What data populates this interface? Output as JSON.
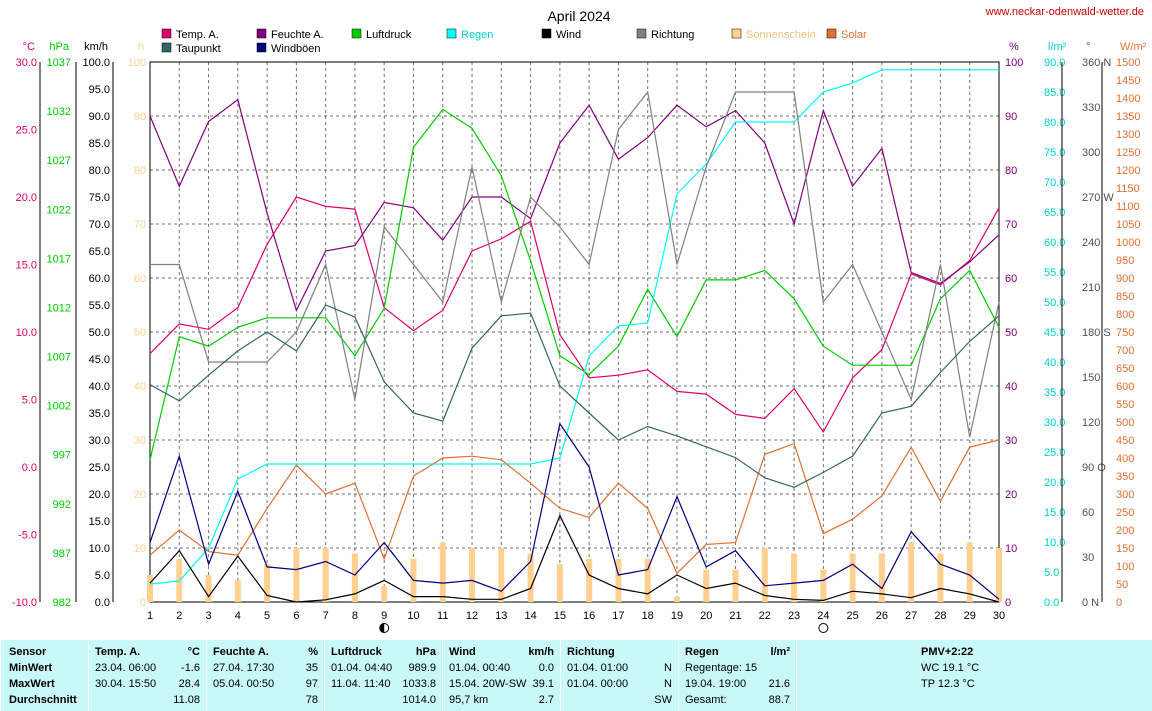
{
  "site_url": "www.neckar-odenwald-wetter.de",
  "chart_data": {
    "type": "line",
    "title": "April 2024",
    "x": [
      1,
      2,
      3,
      4,
      5,
      6,
      7,
      8,
      9,
      10,
      11,
      12,
      13,
      14,
      15,
      16,
      17,
      18,
      19,
      20,
      21,
      22,
      23,
      24,
      25,
      26,
      27,
      28,
      29,
      30
    ],
    "xlim": [
      1,
      30
    ],
    "grid": true,
    "axes": {
      "temp_c": {
        "label": "°C",
        "min": -10,
        "max": 30,
        "ticks": [
          "-10.0",
          "-5.0",
          "0.0",
          "5.0",
          "10.0",
          "15.0",
          "20.0",
          "25.0",
          "30.0"
        ]
      },
      "pressure": {
        "label": "hPa",
        "min": 982,
        "max": 1039,
        "ticks": [
          "982",
          "987",
          "992",
          "997",
          "1002",
          "1007",
          "1012",
          "1017",
          "1022",
          "1027",
          "1032",
          "1037"
        ]
      },
      "wind_kmh": {
        "label": "km/h",
        "min": 0,
        "max": 100,
        "ticks": [
          "0.0",
          "5.0",
          "10.0",
          "15.0",
          "20.0",
          "25.0",
          "30.0",
          "35.0",
          "40.0",
          "45.0",
          "50.0",
          "55.0",
          "60.0",
          "65.0",
          "70.0",
          "75.0",
          "80.0",
          "85.0",
          "90.0",
          "95.0",
          "100.0"
        ]
      },
      "sun_h": {
        "label": "h",
        "min": 0,
        "max": 100,
        "ticks": [
          "0",
          "10",
          "20",
          "30",
          "40",
          "50",
          "60",
          "70",
          "80",
          "90",
          "100"
        ]
      },
      "humidity": {
        "label": "%",
        "min": 0,
        "max": 100,
        "ticks": [
          "0",
          "10",
          "20",
          "30",
          "40",
          "50",
          "60",
          "70",
          "80",
          "90",
          "100"
        ]
      },
      "rain": {
        "label": "l/m²",
        "min": 0,
        "max": 90,
        "ticks": [
          "0.0",
          "5.0",
          "10.0",
          "15.0",
          "20.0",
          "25.0",
          "30.0",
          "35.0",
          "40.0",
          "45.0",
          "50.0",
          "55.0",
          "60.0",
          "65.0",
          "70.0",
          "75.0",
          "80.0",
          "85.0",
          "90.0"
        ]
      },
      "direction": {
        "label": "°",
        "min": 0,
        "max": 360,
        "ticks": [
          "0 N",
          "30",
          "60",
          "90 O",
          "120",
          "150",
          "180 S",
          "210",
          "240",
          "270 W",
          "300",
          "330",
          "360 N"
        ]
      },
      "solar": {
        "label": "W/m²",
        "min": 0,
        "max": 1500,
        "ticks": [
          "0",
          "50",
          "100",
          "150",
          "200",
          "250",
          "300",
          "350",
          "400",
          "450",
          "500",
          "550",
          "600",
          "650",
          "700",
          "750",
          "800",
          "850",
          "900",
          "950",
          "1000",
          "1050",
          "1100",
          "1150",
          "1200",
          "1250",
          "1300",
          "1350",
          "1400",
          "1450",
          "1500"
        ]
      }
    },
    "series": [
      {
        "name": "Temp. A.",
        "axis": "temp_c",
        "color": "#e0006a",
        "values": [
          8.4,
          10.6,
          10.2,
          11.8,
          16.5,
          20.0,
          19.3,
          19.1,
          11.8,
          10.1,
          11.6,
          16.0,
          16.9,
          18.2,
          9.8,
          6.6,
          6.8,
          7.2,
          5.6,
          5.4,
          3.9,
          3.6,
          5.8,
          2.6,
          6.6,
          8.7,
          14.3,
          13.5,
          15.3,
          19.2
        ]
      },
      {
        "name": "Feuchte A.",
        "axis": "humidity",
        "color": "#800080",
        "values": [
          90,
          77,
          89,
          93,
          72,
          54,
          65,
          66,
          74,
          73,
          67,
          75,
          75,
          71,
          85,
          92,
          82,
          86,
          92,
          88,
          91,
          85,
          70,
          91,
          77,
          84,
          61,
          59,
          63,
          68
        ]
      },
      {
        "name": "Luftdruck",
        "axis": "pressure",
        "color": "#00cc00",
        "values": [
          997,
          1010,
          1009,
          1011,
          1012,
          1012,
          1012,
          1008,
          1013,
          1030,
          1034,
          1032,
          1027,
          1018,
          1008,
          1006,
          1009,
          1015,
          1010,
          1016,
          1016,
          1017,
          1014,
          1009,
          1007,
          1007,
          1007,
          1014,
          1017,
          1011
        ]
      },
      {
        "name": "Regen",
        "axis": "rain",
        "color": "#00ffff",
        "values": [
          3.0,
          3.5,
          9.0,
          20.5,
          23.0,
          23.0,
          23.0,
          23.0,
          23.0,
          23.0,
          23.0,
          23.0,
          23.0,
          23.0,
          24.0,
          41.0,
          46.0,
          46.5,
          68.0,
          73.0,
          80.0,
          80.0,
          80.0,
          85.0,
          86.5,
          88.7,
          88.7,
          88.7,
          88.7,
          88.7
        ]
      },
      {
        "name": "Wind",
        "axis": "wind_kmh",
        "color": "#000000",
        "values": [
          3.5,
          9.5,
          1.0,
          8.5,
          1.2,
          0.0,
          0.4,
          1.5,
          4.0,
          1.0,
          1.0,
          0.5,
          0.5,
          2.5,
          16.0,
          5.0,
          2.5,
          1.5,
          5.0,
          2.5,
          3.5,
          1.2,
          0.5,
          0.3,
          2.0,
          1.5,
          0.8,
          2.5,
          1.5,
          0.0
        ]
      },
      {
        "name": "Richtung",
        "axis": "direction",
        "color": "#808080",
        "values": [
          225,
          225,
          160,
          160,
          160,
          180,
          225,
          135,
          250,
          225,
          200,
          290,
          200,
          270,
          250,
          225,
          315,
          340,
          225,
          290,
          340,
          340,
          340,
          200,
          225,
          180,
          135,
          225,
          110,
          200
        ]
      },
      {
        "name": "Sonnenschein",
        "axis": "sun_h",
        "color": "#ffd090",
        "type": "bar",
        "values": [
          5,
          8,
          5,
          4,
          7,
          10,
          10,
          9,
          3,
          8,
          11,
          10,
          10,
          9,
          7,
          8,
          8,
          8,
          1,
          6,
          6,
          10,
          9,
          6,
          9,
          9,
          11,
          9,
          11,
          10
        ]
      },
      {
        "name": "Solar",
        "axis": "solar",
        "color": "#e07030",
        "values": [
          130,
          200,
          140,
          130,
          260,
          380,
          300,
          330,
          120,
          350,
          400,
          405,
          395,
          330,
          260,
          235,
          330,
          260,
          80,
          160,
          165,
          410,
          440,
          190,
          230,
          295,
          430,
          280,
          430,
          450
        ]
      },
      {
        "name": "Taupunkt",
        "axis": "temp_c",
        "color": "#336666",
        "values": [
          6.1,
          4.9,
          6.8,
          8.6,
          10.0,
          8.6,
          12.0,
          11.1,
          6.3,
          4.0,
          3.4,
          8.8,
          11.2,
          11.4,
          6.0,
          4.0,
          2.0,
          3.0,
          2.3,
          1.5,
          0.7,
          -0.8,
          -1.5,
          -0.4,
          0.8,
          4.0,
          4.5,
          7.0,
          9.3,
          11.2
        ]
      },
      {
        "name": "Windböen",
        "axis": "wind_kmh",
        "color": "#000080",
        "values": [
          11.0,
          27.0,
          7.0,
          20.5,
          6.5,
          6.0,
          7.5,
          5.0,
          11.0,
          4.0,
          3.5,
          4.0,
          2.0,
          7.5,
          33.0,
          25.0,
          5.0,
          6.0,
          19.5,
          6.5,
          9.5,
          3.0,
          3.5,
          4.0,
          7.0,
          2.5,
          13.0,
          7.0,
          5.0,
          0.5
        ]
      }
    ],
    "moon_markers": [
      {
        "x": 9,
        "phase": "new"
      },
      {
        "x": 24,
        "phase": "full"
      }
    ]
  },
  "stats": {
    "sensor": {
      "header": "Sensor",
      "rows": [
        "MinWert",
        "MaxWert",
        "Durchschnitt"
      ]
    },
    "temp": {
      "header": "Temp. A.",
      "unit": "°C",
      "rows": [
        {
          "time": "23.04.  06:00",
          "value": "-1.6"
        },
        {
          "time": "30.04.  15:50",
          "value": "28.4"
        },
        {
          "time": "",
          "value": "11.08"
        }
      ]
    },
    "humidity": {
      "header": "Feuchte A.",
      "unit": "%",
      "rows": [
        {
          "time": "27.04.  17:30",
          "value": "35"
        },
        {
          "time": "05.04.  00:50",
          "value": "97"
        },
        {
          "time": "",
          "value": "78"
        }
      ]
    },
    "pressure": {
      "header": "Luftdruck",
      "unit": "hPa",
      "rows": [
        {
          "time": "01.04.  04:40",
          "value": "989.9"
        },
        {
          "time": "11.04.  11:40",
          "value": "1033.8"
        },
        {
          "time": "",
          "value": "1014.0"
        }
      ]
    },
    "wind": {
      "header": "Wind",
      "unit": "km/h",
      "rows": [
        {
          "time": "01.04.  00:40",
          "value": "0.0"
        },
        {
          "time": "15.04.  20W-SW",
          "value": "39.1"
        },
        {
          "time": "95,7 km",
          "value": "2.7"
        }
      ]
    },
    "direction": {
      "header": "Richtung",
      "unit": "",
      "rows": [
        {
          "time": "01.04.  01:00",
          "value": "N"
        },
        {
          "time": "01.04.  00:00",
          "value": "N"
        },
        {
          "time": "",
          "value": "SW"
        }
      ]
    },
    "rain": {
      "header": "Regen",
      "unit": "l/m²",
      "rows": [
        {
          "time": "Regentage: 15",
          "value": ""
        },
        {
          "time": "19.04.  19:00",
          "value": "21.6"
        },
        {
          "time": "Gesamt:",
          "value": "88.7"
        }
      ]
    },
    "pmv": {
      "header": "PMV+2:22",
      "rows": [
        "WC 19.1 °C",
        "TP 12.3 °C",
        ""
      ]
    }
  }
}
